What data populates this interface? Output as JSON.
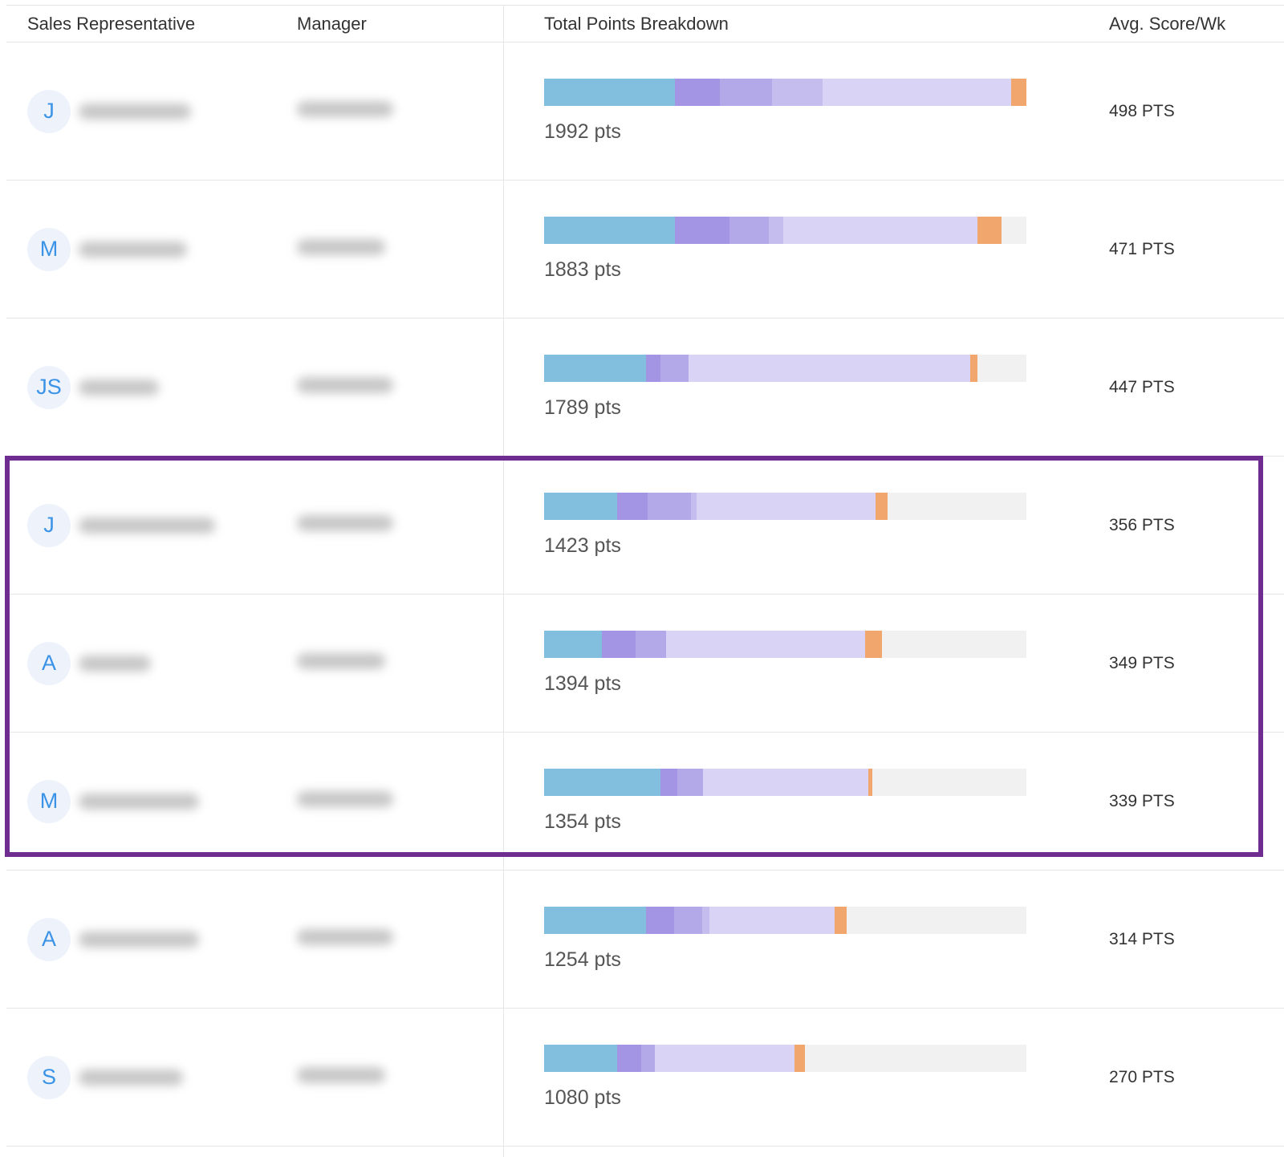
{
  "colors": {
    "seg1": "#82bfde",
    "seg2": "#a395e3",
    "seg3": "#b4a9e8",
    "seg4": "#c6bdef",
    "seg5": "#d9d4f5",
    "seg6": "#f1a66e",
    "track": "#f1f1f1",
    "highlight_border": "#6f2d91",
    "avatar_text": "#3a93e6"
  },
  "table": {
    "headers": {
      "rep": "Sales Representative",
      "manager": "Manager",
      "breakdown": "Total Points Breakdown",
      "avg": "Avg. Score/Wk"
    },
    "rows": [
      {
        "initials": "J",
        "total": "1992 pts",
        "avg": "498 PTS",
        "segments": [
          0.272,
          0.092,
          0.108,
          0.105,
          0.392,
          0.031
        ]
      },
      {
        "initials": "M",
        "total": "1883 pts",
        "avg": "471 PTS",
        "segments": [
          0.272,
          0.112,
          0.082,
          0.03,
          0.402,
          0.05
        ]
      },
      {
        "initials": "JS",
        "total": "1789 pts",
        "avg": "447 PTS",
        "segments": [
          0.212,
          0.03,
          0.058,
          0.583,
          0.015
        ]
      },
      {
        "initials": "J",
        "total": "1423 pts",
        "avg": "356 PTS",
        "segments": [
          0.152,
          0.062,
          0.09,
          0.013,
          0.371,
          0.025
        ]
      },
      {
        "initials": "A",
        "total": "1394 pts",
        "avg": "349 PTS",
        "segments": [
          0.12,
          0.07,
          0.063,
          0.412,
          0.035
        ]
      },
      {
        "initials": "M",
        "total": "1354 pts",
        "avg": "339 PTS",
        "segments": [
          0.242,
          0.035,
          0.053,
          0.343,
          0.008
        ]
      },
      {
        "initials": "A",
        "total": "1254 pts",
        "avg": "314 PTS",
        "segments": [
          0.212,
          0.058,
          0.058,
          0.015,
          0.26,
          0.025
        ]
      },
      {
        "initials": "S",
        "total": "1080 pts",
        "avg": "270 PTS",
        "segments": [
          0.152,
          0.05,
          0.028,
          0.29,
          0.02
        ]
      }
    ]
  }
}
